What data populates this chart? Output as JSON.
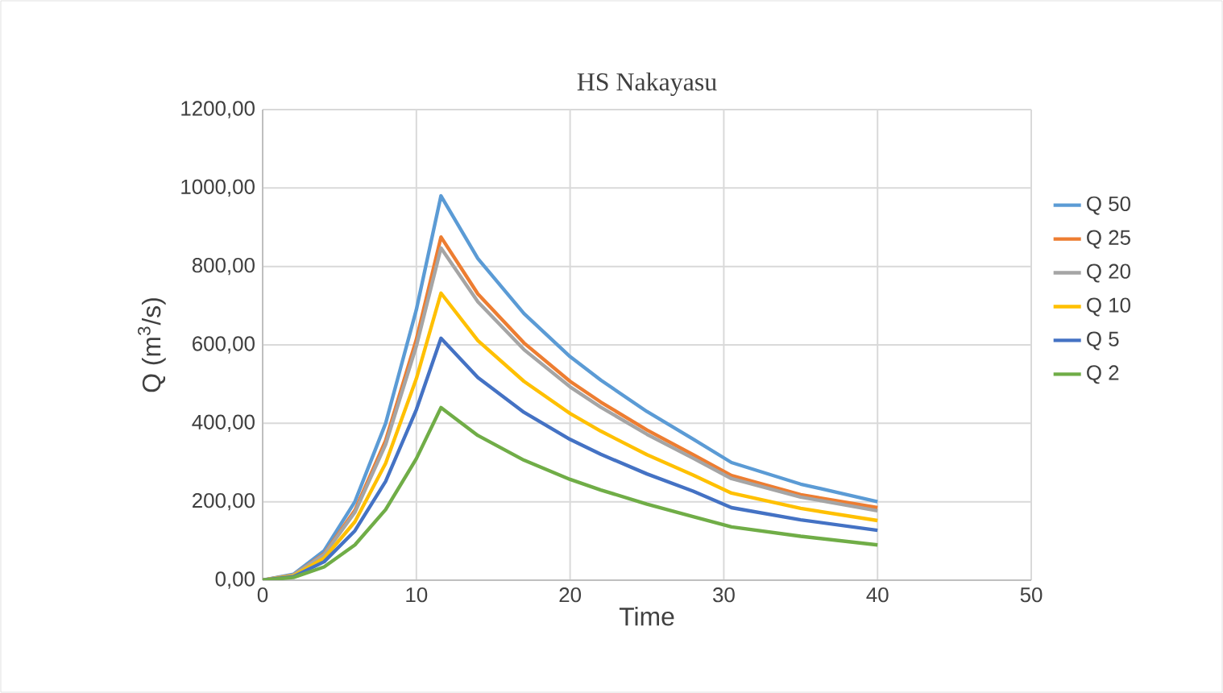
{
  "chart_data": {
    "type": "line",
    "title": "HS Nakayasu",
    "xlabel": "Time",
    "ylabel": "Q (m$^{3}$/s)",
    "x": [
      0,
      2,
      4,
      6,
      8,
      10,
      11.6,
      14,
      17,
      20,
      22,
      25,
      28,
      30.5,
      35,
      40
    ],
    "series": [
      {
        "name": "Q 50",
        "color": "#5b9bd5",
        "values": [
          0,
          15,
          75,
          200,
          400,
          690,
          980,
          820,
          680,
          570,
          510,
          430,
          360,
          300,
          245,
          200
        ]
      },
      {
        "name": "Q 25",
        "color": "#ed7d31",
        "values": [
          0,
          13,
          67,
          178,
          356,
          614,
          875,
          730,
          605,
          507,
          454,
          383,
          320,
          267,
          218,
          185
        ]
      },
      {
        "name": "Q 20",
        "color": "#a5a5a5",
        "values": [
          0,
          13,
          65,
          173,
          346,
          597,
          847,
          710,
          588,
          493,
          441,
          372,
          311,
          259,
          212,
          177
        ]
      },
      {
        "name": "Q 10",
        "color": "#ffc000",
        "values": [
          0,
          11,
          56,
          149,
          298,
          514,
          732,
          611,
          507,
          425,
          380,
          320,
          268,
          222,
          183,
          152
        ]
      },
      {
        "name": "Q 5",
        "color": "#4472c4",
        "values": [
          0,
          9,
          47,
          126,
          252,
          435,
          617,
          517,
          428,
          359,
          321,
          271,
          227,
          185,
          154,
          127
        ]
      },
      {
        "name": "Q 2",
        "color": "#70ad47",
        "values": [
          0,
          7,
          34,
          90,
          180,
          310,
          440,
          369,
          306,
          257,
          230,
          194,
          162,
          136,
          112,
          90
        ]
      }
    ],
    "xlim": [
      0,
      50
    ],
    "ylim": [
      0,
      1200
    ],
    "xticks": [
      0,
      10,
      20,
      30,
      40,
      50
    ],
    "yticks": [
      {
        "value": 0,
        "label": "0,00"
      },
      {
        "value": 200,
        "label": "200,00"
      },
      {
        "value": 400,
        "label": "400,00"
      },
      {
        "value": 600,
        "label": "600,00"
      },
      {
        "value": 800,
        "label": "800,00"
      },
      {
        "value": 1000,
        "label": "1000,00"
      },
      {
        "value": 1200,
        "label": "1200,00"
      }
    ],
    "grid": true,
    "legend": "right",
    "marker": "none",
    "line_style": "solid"
  }
}
